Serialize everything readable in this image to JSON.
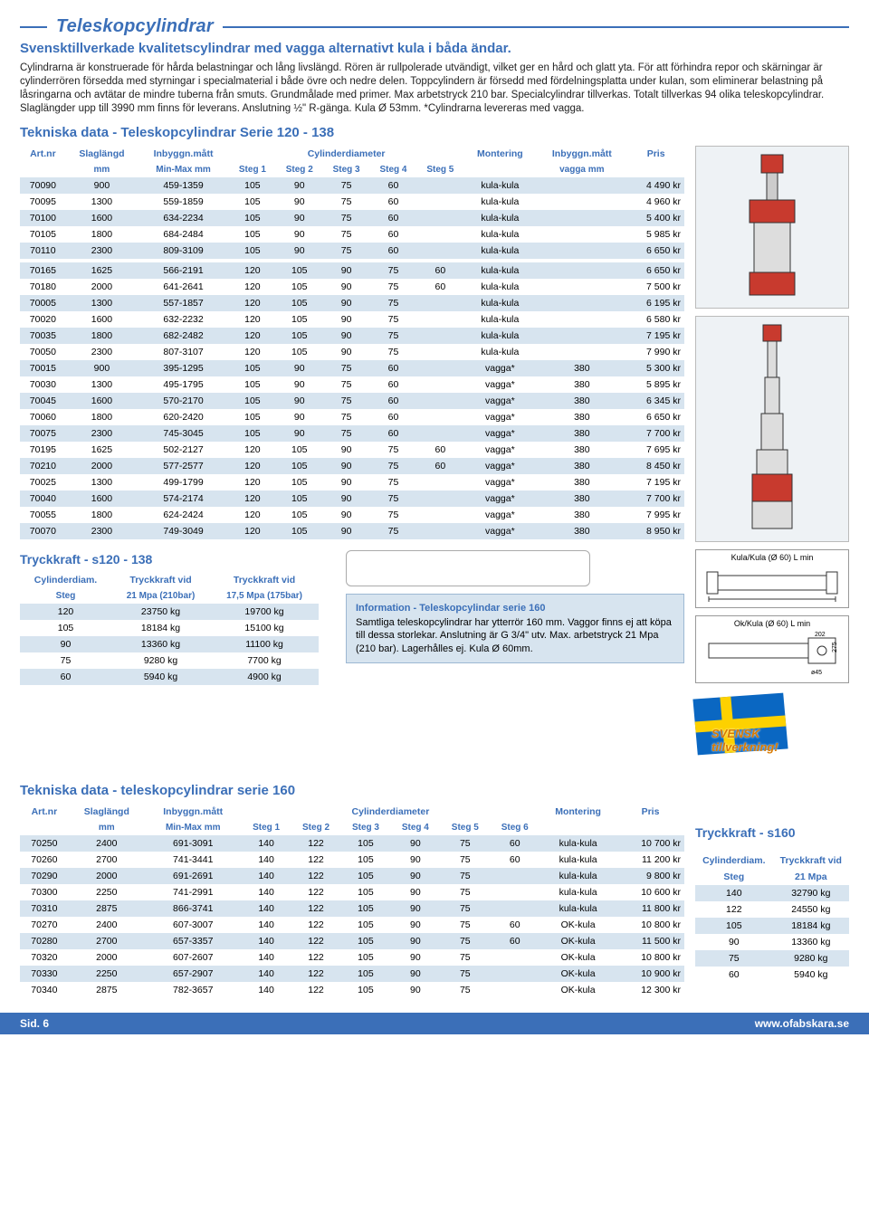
{
  "header": {
    "title": "Teleskopcylindrar",
    "subtitle": "Svensktillverkade kvalitetscylindrar med vagga alternativt kula i båda ändar.",
    "body": "Cylindrarna är konstruerade för hårda belastningar och lång livslängd. Rören är rullpolerade utvändigt, vilket ger en hård och glatt yta. För att förhindra repor och skärningar är cylinderrören försedda med styrningar i specialmaterial i både övre och nedre delen. Toppcylindern är försedd med fördelningsplatta under kulan, som eliminerar belastning på låsringarna och avtätar de mindre tuberna från smuts. Grundmålade med primer. Max arbetstryck 210 bar. Specialcylindrar tillverkas. Totalt tillverkas 94 olika teleskopcylindrar. Slaglängder upp till 3990 mm finns för leverans. Anslutning ½\" R-gänga. Kula Ø 53mm. *Cylindrarna levereras med vagga."
  },
  "table1": {
    "title": "Tekniska data - Teleskopcylindrar Serie 120 - 138",
    "head": {
      "c0": "Art.nr",
      "c1": "Slaglängd",
      "c2": "Inbyggn.mått",
      "c3": "Cylinderdiameter",
      "c4": "Montering",
      "c5": "Inbyggn.mått",
      "c6": "Pris",
      "u1": "mm",
      "u2": "Min-Max mm",
      "s1": "Steg 1",
      "s2": "Steg 2",
      "s3": "Steg 3",
      "s4": "Steg 4",
      "s5": "Steg 5",
      "u5": "vagga mm"
    },
    "groups": [
      {
        "rows": [
          [
            "70090",
            "900",
            "459-1359",
            "105",
            "90",
            "75",
            "60",
            "",
            "kula-kula",
            "",
            "4 490 kr"
          ],
          [
            "70095",
            "1300",
            "559-1859",
            "105",
            "90",
            "75",
            "60",
            "",
            "kula-kula",
            "",
            "4 960 kr"
          ],
          [
            "70100",
            "1600",
            "634-2234",
            "105",
            "90",
            "75",
            "60",
            "",
            "kula-kula",
            "",
            "5 400 kr"
          ],
          [
            "70105",
            "1800",
            "684-2484",
            "105",
            "90",
            "75",
            "60",
            "",
            "kula-kula",
            "",
            "5 985 kr"
          ],
          [
            "70110",
            "2300",
            "809-3109",
            "105",
            "90",
            "75",
            "60",
            "",
            "kula-kula",
            "",
            "6 650 kr"
          ]
        ]
      },
      {
        "rows": [
          [
            "70165",
            "1625",
            "566-2191",
            "120",
            "105",
            "90",
            "75",
            "60",
            "kula-kula",
            "",
            "6 650 kr"
          ],
          [
            "70180",
            "2000",
            "641-2641",
            "120",
            "105",
            "90",
            "75",
            "60",
            "kula-kula",
            "",
            "7 500 kr"
          ],
          [
            "70005",
            "1300",
            "557-1857",
            "120",
            "105",
            "90",
            "75",
            "",
            "kula-kula",
            "",
            "6 195 kr"
          ],
          [
            "70020",
            "1600",
            "632-2232",
            "120",
            "105",
            "90",
            "75",
            "",
            "kula-kula",
            "",
            "6 580 kr"
          ],
          [
            "70035",
            "1800",
            "682-2482",
            "120",
            "105",
            "90",
            "75",
            "",
            "kula-kula",
            "",
            "7 195 kr"
          ],
          [
            "70050",
            "2300",
            "807-3107",
            "120",
            "105",
            "90",
            "75",
            "",
            "kula-kula",
            "",
            "7 990 kr"
          ],
          [
            "70015",
            "900",
            "395-1295",
            "105",
            "90",
            "75",
            "60",
            "",
            "vagga*",
            "380",
            "5 300 kr"
          ],
          [
            "70030",
            "1300",
            "495-1795",
            "105",
            "90",
            "75",
            "60",
            "",
            "vagga*",
            "380",
            "5 895 kr"
          ],
          [
            "70045",
            "1600",
            "570-2170",
            "105",
            "90",
            "75",
            "60",
            "",
            "vagga*",
            "380",
            "6 345 kr"
          ],
          [
            "70060",
            "1800",
            "620-2420",
            "105",
            "90",
            "75",
            "60",
            "",
            "vagga*",
            "380",
            "6 650 kr"
          ],
          [
            "70075",
            "2300",
            "745-3045",
            "105",
            "90",
            "75",
            "60",
            "",
            "vagga*",
            "380",
            "7 700 kr"
          ],
          [
            "70195",
            "1625",
            "502-2127",
            "120",
            "105",
            "90",
            "75",
            "60",
            "vagga*",
            "380",
            "7 695 kr"
          ],
          [
            "70210",
            "2000",
            "577-2577",
            "120",
            "105",
            "90",
            "75",
            "60",
            "vagga*",
            "380",
            "8 450 kr"
          ],
          [
            "70025",
            "1300",
            "499-1799",
            "120",
            "105",
            "90",
            "75",
            "",
            "vagga*",
            "380",
            "7 195 kr"
          ],
          [
            "70040",
            "1600",
            "574-2174",
            "120",
            "105",
            "90",
            "75",
            "",
            "vagga*",
            "380",
            "7 700 kr"
          ],
          [
            "70055",
            "1800",
            "624-2424",
            "120",
            "105",
            "90",
            "75",
            "",
            "vagga*",
            "380",
            "7 995 kr"
          ],
          [
            "70070",
            "2300",
            "749-3049",
            "120",
            "105",
            "90",
            "75",
            "",
            "vagga*",
            "380",
            "8 950 kr"
          ]
        ]
      }
    ]
  },
  "force1": {
    "title": "Tryckkraft - s120 - 138",
    "head": {
      "c0": "Cylinderdiam.",
      "c1": "Tryckkraft vid",
      "c2": "Tryckkraft vid",
      "u0": "Steg",
      "u1": "21 Mpa (210bar)",
      "u2": "17,5 Mpa (175bar)"
    },
    "rows": [
      [
        "120",
        "23750 kg",
        "19700 kg"
      ],
      [
        "105",
        "18184 kg",
        "15100 kg"
      ],
      [
        "90",
        "13360 kg",
        "11100 kg"
      ],
      [
        "75",
        "9280 kg",
        "7700 kg"
      ],
      [
        "60",
        "5940 kg",
        "4900 kg"
      ]
    ]
  },
  "infobox": {
    "title": "Information - Teleskopcylindar serie 160",
    "body": "Samtliga teleskopcylindrar har ytterrör 160 mm. Vaggor finns ej att köpa till dessa storlekar. Anslutning är G 3/4\" utv. Max. arbetstryck 21 Mpa (210 bar). Lagerhålles ej. Kula Ø 60mm."
  },
  "flag": {
    "l1": "SVENSK",
    "l2": "tillverkning!"
  },
  "table2": {
    "title": "Tekniska data - teleskopcylindrar serie 160",
    "head": {
      "c0": "Art.nr",
      "c1": "Slaglängd",
      "c2": "Inbyggn.mått",
      "c3": "Cylinderdiameter",
      "c4": "Montering",
      "c5": "Pris",
      "u1": "mm",
      "u2": "Min-Max mm",
      "s1": "Steg 1",
      "s2": "Steg 2",
      "s3": "Steg 3",
      "s4": "Steg 4",
      "s5": "Steg 5",
      "s6": "Steg 6"
    },
    "rows": [
      [
        "70250",
        "2400",
        "691-3091",
        "140",
        "122",
        "105",
        "90",
        "75",
        "60",
        "kula-kula",
        "10 700 kr"
      ],
      [
        "70260",
        "2700",
        "741-3441",
        "140",
        "122",
        "105",
        "90",
        "75",
        "60",
        "kula-kula",
        "11 200 kr"
      ],
      [
        "70290",
        "2000",
        "691-2691",
        "140",
        "122",
        "105",
        "90",
        "75",
        "",
        "kula-kula",
        "9 800 kr"
      ],
      [
        "70300",
        "2250",
        "741-2991",
        "140",
        "122",
        "105",
        "90",
        "75",
        "",
        "kula-kula",
        "10 600 kr"
      ],
      [
        "70310",
        "2875",
        "866-3741",
        "140",
        "122",
        "105",
        "90",
        "75",
        "",
        "kula-kula",
        "11 800 kr"
      ],
      [
        "70270",
        "2400",
        "607-3007",
        "140",
        "122",
        "105",
        "90",
        "75",
        "60",
        "OK-kula",
        "10 800 kr"
      ],
      [
        "70280",
        "2700",
        "657-3357",
        "140",
        "122",
        "105",
        "90",
        "75",
        "60",
        "OK-kula",
        "11 500 kr"
      ],
      [
        "70320",
        "2000",
        "607-2607",
        "140",
        "122",
        "105",
        "90",
        "75",
        "",
        "OK-kula",
        "10 800 kr"
      ],
      [
        "70330",
        "2250",
        "657-2907",
        "140",
        "122",
        "105",
        "90",
        "75",
        "",
        "OK-kula",
        "10 900 kr"
      ],
      [
        "70340",
        "2875",
        "782-3657",
        "140",
        "122",
        "105",
        "90",
        "75",
        "",
        "OK-kula",
        "12 300 kr"
      ]
    ]
  },
  "force2": {
    "title": "Tryckkraft - s160",
    "head": {
      "c0": "Cylinderdiam.",
      "c1": "Tryckkraft vid",
      "u0": "Steg",
      "u1": "21 Mpa"
    },
    "rows": [
      [
        "140",
        "32790 kg"
      ],
      [
        "122",
        "24550 kg"
      ],
      [
        "105",
        "18184 kg"
      ],
      [
        "90",
        "13360 kg"
      ],
      [
        "75",
        "9280 kg"
      ],
      [
        "60",
        "5940 kg"
      ]
    ]
  },
  "diagrams": {
    "d1": "Kula/Kula (Ø 60)  L min",
    "d2": "Ok/Kula (Ø 60)  L min",
    "d2a": "202",
    "d2b": "275",
    "d2c": "ø45"
  },
  "footer": {
    "left": "Sid. 6",
    "right": "www.ofabskara.se"
  }
}
